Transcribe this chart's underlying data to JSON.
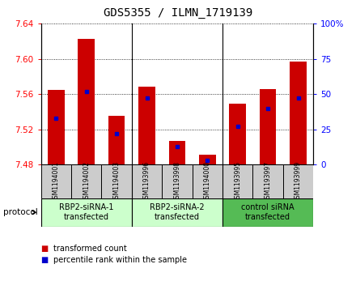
{
  "title": "GDS5355 / ILMN_1719139",
  "samples": [
    "GSM1194001",
    "GSM1194002",
    "GSM1194003",
    "GSM1193996",
    "GSM1193998",
    "GSM1194000",
    "GSM1193995",
    "GSM1193997",
    "GSM1193999"
  ],
  "bar_values": [
    7.565,
    7.623,
    7.535,
    7.568,
    7.507,
    7.491,
    7.549,
    7.566,
    7.597
  ],
  "percentile_values": [
    33,
    52,
    22,
    47,
    13,
    3,
    27,
    40,
    47
  ],
  "bar_base": 7.48,
  "ylim_left": [
    7.48,
    7.64
  ],
  "ylim_right": [
    0,
    100
  ],
  "yticks_left": [
    7.48,
    7.52,
    7.56,
    7.6,
    7.64
  ],
  "yticks_right": [
    0,
    25,
    50,
    75,
    100
  ],
  "bar_color": "#cc0000",
  "percentile_color": "#0000cc",
  "group_labels": [
    "RBP2-siRNA-1\ntransfected",
    "RBP2-siRNA-2\ntransfected",
    "control siRNA\ntransfected"
  ],
  "group_ranges": [
    [
      0,
      3
    ],
    [
      3,
      6
    ],
    [
      6,
      9
    ]
  ],
  "group_colors": [
    "#ccffcc",
    "#ccffcc",
    "#55bb55"
  ],
  "group_border_colors": [
    "#888888",
    "#888888",
    "#888888"
  ],
  "protocol_label": "protocol",
  "legend_items": [
    {
      "color": "#cc0000",
      "label": "transformed count"
    },
    {
      "color": "#0000cc",
      "label": "percentile rank within the sample"
    }
  ],
  "tick_bg_color": "#cccccc",
  "title_fontsize": 10,
  "bar_width": 0.55
}
